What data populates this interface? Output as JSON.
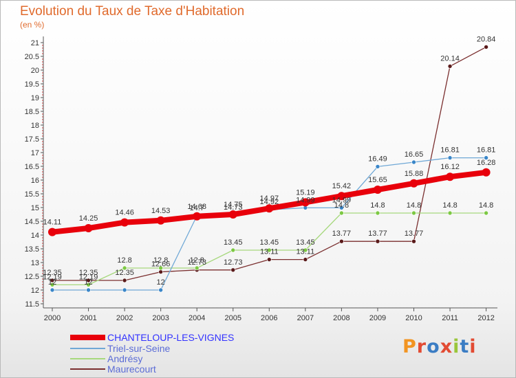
{
  "header": {
    "title": "Evolution du Taux de Taxe d'Habitation",
    "unit": "(en %)"
  },
  "logo": {
    "text": "Proxiti",
    "colors": [
      "#f29421",
      "#e24b33",
      "#3b7dc4",
      "#e24b33",
      "#9ac63b",
      "#3b7dc4",
      "#e24b33"
    ]
  },
  "chart_data": {
    "type": "line",
    "title": "Evolution du Taux de Taxe d'Habitation",
    "ylabel": "(en %)",
    "xlabel": "",
    "x": [
      "2000",
      "2001",
      "2002",
      "2003",
      "2004",
      "2005",
      "2006",
      "2007",
      "2008",
      "2009",
      "2010",
      "2011",
      "2012"
    ],
    "ylim": [
      11.5,
      21
    ],
    "yticks": [
      "11.5",
      "12",
      "12.5",
      "13",
      "13.5",
      "14",
      "14.5",
      "15",
      "15.5",
      "16",
      "16.5",
      "17",
      "17.5",
      "18",
      "18.5",
      "19",
      "19.5",
      "20",
      "20.5",
      "21"
    ],
    "grid": false,
    "legend_position": "bottom-left",
    "series": [
      {
        "name": "CHANTELOUP-LES-VIGNES",
        "color": "#e8000b",
        "marker": "#e8000b",
        "values": [
          14.11,
          14.25,
          14.46,
          14.53,
          14.68,
          14.75,
          14.97,
          15.19,
          15.42,
          15.65,
          15.88,
          16.12,
          16.28
        ],
        "labels": [
          "14.11",
          "14.25",
          "14.46",
          "14.53",
          "14.68",
          "14.75",
          "14.97",
          "15.19",
          "15.42",
          "15.65",
          "15.88",
          "16.12",
          "16.28"
        ]
      },
      {
        "name": "Triel-sur-Seine",
        "color": "#6fa8d6",
        "marker": "#3a86c8",
        "values": [
          12,
          12,
          12,
          12,
          14.7,
          14.73,
          14.92,
          14.99,
          14.99,
          16.49,
          16.65,
          16.81,
          16.81
        ],
        "labels": [
          "12",
          "12",
          "",
          "12",
          "14.7",
          "14.73",
          "14.92",
          "14.99",
          "14.99",
          "16.49",
          "16.65",
          "16.81",
          "16.81"
        ]
      },
      {
        "name": "Andrésy",
        "color": "#a6d87c",
        "marker": "#7cc843",
        "values": [
          12.19,
          12.19,
          12.8,
          12.8,
          12.8,
          13.45,
          13.45,
          13.45,
          14.8,
          14.8,
          14.8,
          14.8,
          14.8
        ],
        "labels": [
          "12.19",
          "12.19",
          "12.8",
          "12.8",
          "12.8",
          "13.45",
          "13.45",
          "13.45",
          "14.8",
          "14.8",
          "14.8",
          "14.8",
          "14.8"
        ]
      },
      {
        "name": "Maurecourt",
        "color": "#7a2e2e",
        "marker": "#5a1a1a",
        "values": [
          12.35,
          12.35,
          12.35,
          12.66,
          12.73,
          12.73,
          13.11,
          13.11,
          13.77,
          13.77,
          13.77,
          20.14,
          20.84
        ],
        "labels": [
          "12.35",
          "12.35",
          "12.35",
          "12.66",
          "12.73",
          "12.73",
          "13.11",
          "13.11",
          "13.77",
          "13.77",
          "13.77",
          "20.14",
          "20.84"
        ]
      }
    ]
  }
}
